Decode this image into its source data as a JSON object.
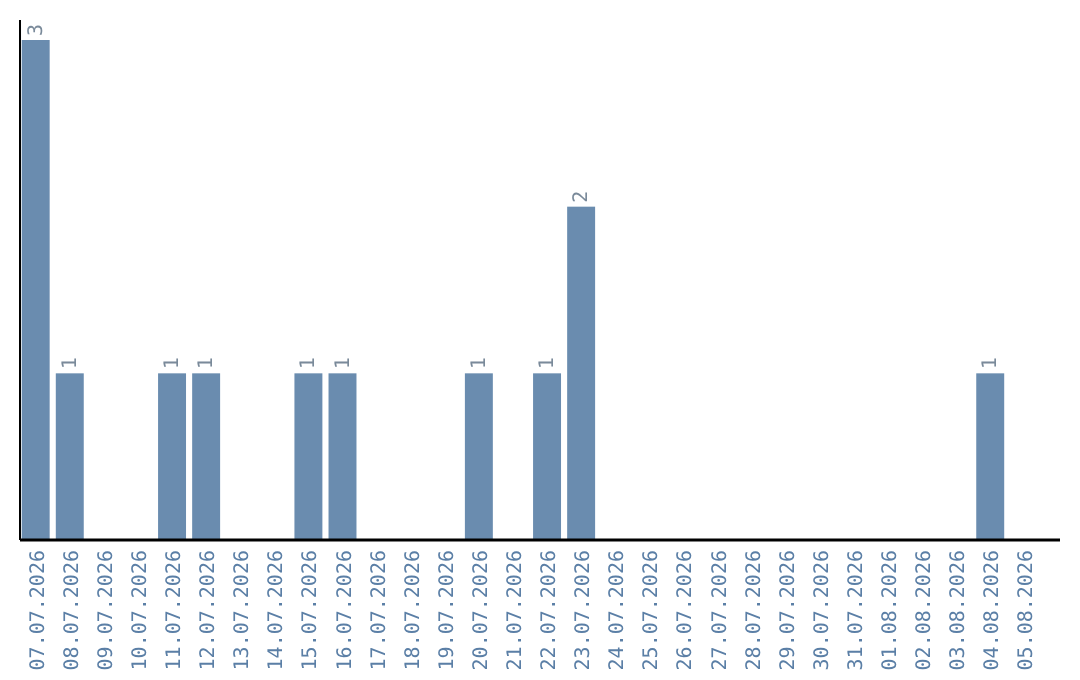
{
  "chart_data": {
    "type": "bar",
    "categories": [
      "07.07.2026",
      "08.07.2026",
      "09.07.2026",
      "10.07.2026",
      "11.07.2026",
      "12.07.2026",
      "13.07.2026",
      "14.07.2026",
      "15.07.2026",
      "16.07.2026",
      "17.07.2026",
      "18.07.2026",
      "19.07.2026",
      "20.07.2026",
      "21.07.2026",
      "22.07.2026",
      "23.07.2026",
      "24.07.2026",
      "25.07.2026",
      "26.07.2026",
      "27.07.2026",
      "28.07.2026",
      "29.07.2026",
      "30.07.2026",
      "31.07.2026",
      "01.08.2026",
      "02.08.2026",
      "03.08.2026",
      "04.08.2026",
      "05.08.2026"
    ],
    "values": [
      3,
      1,
      0,
      0,
      1,
      1,
      0,
      0,
      1,
      1,
      0,
      0,
      0,
      1,
      0,
      1,
      2,
      0,
      0,
      0,
      0,
      0,
      0,
      0,
      0,
      0,
      0,
      0,
      1,
      0
    ],
    "value_labels": [
      "3",
      "1",
      null,
      null,
      "1",
      "1",
      null,
      null,
      "1",
      "1",
      null,
      null,
      null,
      "1",
      null,
      "1",
      "2",
      null,
      null,
      null,
      null,
      null,
      null,
      null,
      null,
      null,
      null,
      null,
      "1",
      null
    ],
    "color": "#6a8caf"
  }
}
